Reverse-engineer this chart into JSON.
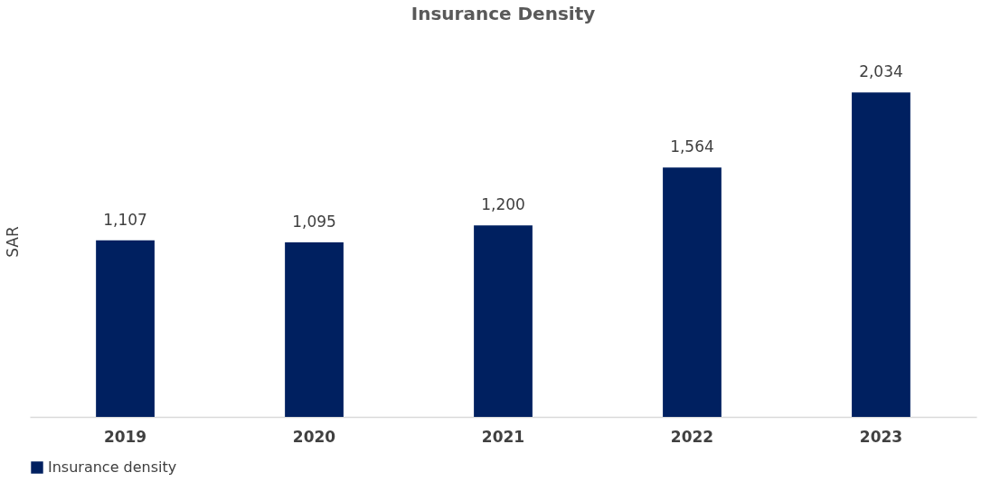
{
  "chart_data": {
    "type": "bar",
    "title": "Insurance Density",
    "ylabel": "SAR",
    "categories": [
      "2019",
      "2020",
      "2021",
      "2022",
      "2023"
    ],
    "series": [
      {
        "name": "Insurance density",
        "color": "#002060",
        "values": [
          1107,
          1095,
          1200,
          1564,
          2034
        ],
        "value_labels": [
          "1,107",
          "1,095",
          "1,200",
          "1,564",
          "2,034"
        ]
      }
    ],
    "legend": "bottom",
    "grid": false,
    "tick_labels": "x"
  }
}
